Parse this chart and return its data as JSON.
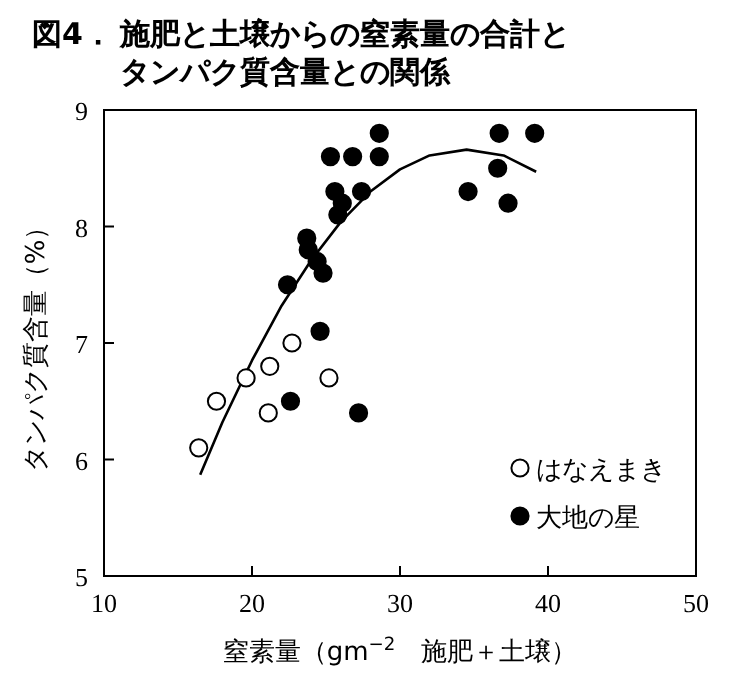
{
  "chart_data": {
    "type": "scatter",
    "title": "図4．施肥と土壌からの窒素量の合計とタンパク質含量との関係",
    "xlabel": "窒素量（gm$^{−2}$　施肥＋土壌）",
    "ylabel": "タンパク質含量（%）",
    "xlim": [
      10,
      50
    ],
    "xticks": [
      10,
      20,
      30,
      40,
      50
    ],
    "ylim": [
      5,
      9
    ],
    "yticks": [
      5,
      6,
      7,
      8,
      9
    ],
    "grid": false,
    "legend": "bottom right",
    "series": [
      {
        "name": "はなえまき",
        "color": "#ffffff",
        "marker": "circle",
        "x": [
          16.4,
          17.6,
          19.6,
          21.2,
          21.1,
          22.7,
          25.2
        ],
        "values": [
          6.1,
          6.5,
          6.7,
          6.8,
          6.4,
          7.0,
          6.7
        ]
      },
      {
        "name": "大地の星",
        "color": "#000000",
        "marker": "circle",
        "x": [
          22.6,
          27.2,
          24.6,
          22.4,
          23.7,
          23.8,
          24.4,
          24.8,
          25.8,
          26.1,
          25.6,
          27.4,
          25.3,
          26.8,
          28.6,
          28.6,
          34.6,
          36.7,
          36.6,
          37.3,
          39.1
        ],
        "values": [
          6.5,
          6.4,
          7.1,
          7.5,
          7.9,
          7.8,
          7.7,
          7.6,
          8.1,
          8.2,
          8.3,
          8.3,
          8.6,
          8.6,
          8.6,
          8.8,
          8.3,
          8.8,
          8.5,
          8.2,
          8.8
        ]
      },
      {
        "type": "line",
        "color": "#000000",
        "x": [
          16.5,
          18,
          20,
          22,
          24,
          26,
          28,
          30,
          32,
          34.5,
          37,
          39.2
        ],
        "values": [
          5.87,
          6.32,
          6.85,
          7.32,
          7.71,
          8.04,
          8.3,
          8.49,
          8.61,
          8.66,
          8.61,
          8.47
        ]
      }
    ]
  }
}
